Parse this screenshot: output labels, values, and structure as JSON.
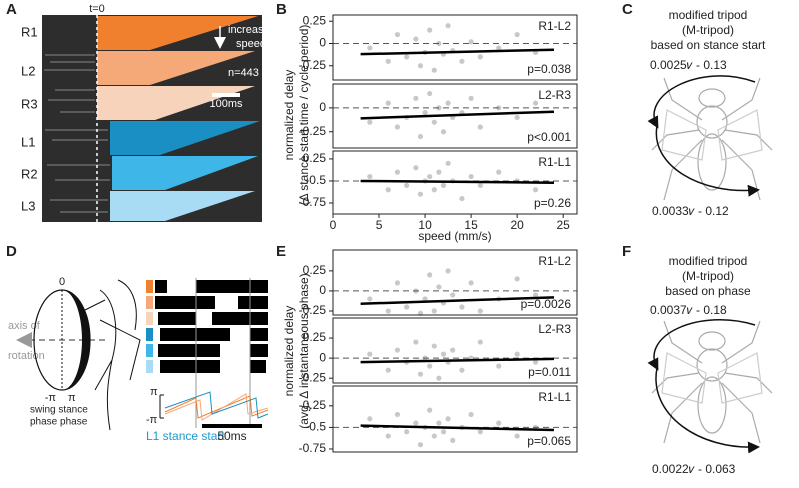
{
  "panel_labels": [
    "A",
    "B",
    "C",
    "D",
    "E",
    "F"
  ],
  "panel_a": {
    "legs": [
      "R1",
      "L2",
      "R3",
      "L1",
      "R2",
      "L3"
    ],
    "t0": "t=0",
    "arrow_label": [
      "increasing",
      "speed"
    ],
    "n": "n=443",
    "scale": "100ms"
  },
  "panel_b": {
    "ylabel": [
      "normalized delay",
      "(Δ stance start time / cycle period)"
    ],
    "xlabel": "speed (mm/s)"
  },
  "panel_c": {
    "lines": [
      "modified tripod",
      "(M-tripod)",
      "based on stance start"
    ],
    "formula_top": "0.0025𝜈 - 0.13",
    "formula_bottom": "0.0033𝜈 - 0.12"
  },
  "panel_d": {
    "zero": "0",
    "axis": [
      "axis of",
      "rotation"
    ],
    "neg_pi": "-π",
    "pi": "π",
    "phase": [
      "swing stance",
      "phase phase"
    ],
    "trace_pi": "π",
    "trace_neg_pi": "-π",
    "caption": "L1 stance start",
    "scale": "50ms"
  },
  "panel_e": {
    "ylabel": [
      "normalized delay",
      "(avg. Δ instantaneous phase)"
    ]
  },
  "panel_f": {
    "lines": [
      "modified tripod",
      "(M-tripod)",
      "based on phase"
    ],
    "formula_top": "0.0037𝜈 - 0.18",
    "formula_bottom": "0.0022𝜈 - 0.063"
  },
  "chart_data": [
    {
      "type": "scatter",
      "label": "R1-L2",
      "annotation": "p=0.038",
      "color": "#c8c8c8",
      "xlim": [
        0,
        26.5
      ],
      "ylim": [
        -0.41,
        0.32
      ],
      "yticks": [
        0.25,
        0,
        -0.25
      ],
      "ref_line": 0,
      "x": [
        4,
        6,
        7,
        8,
        9,
        9.5,
        10,
        10.5,
        11,
        11.5,
        12,
        12.5,
        13,
        14,
        15,
        16,
        18,
        20,
        22
      ],
      "y": [
        -0.05,
        -0.2,
        0.1,
        -0.15,
        0.05,
        -0.25,
        -0.1,
        0.15,
        -0.3,
        0,
        -0.12,
        0.2,
        -0.08,
        -0.2,
        0.02,
        -0.15,
        -0.05,
        0.1,
        -0.1
      ],
      "fit_x": [
        3,
        24
      ],
      "fit_y": [
        -0.12,
        -0.07
      ]
    },
    {
      "type": "scatter",
      "label": "L2-R3",
      "annotation": "p<0.001",
      "color": "#c8c8c8",
      "xlim": [
        0,
        26.5
      ],
      "ylim": [
        -0.42,
        0.25
      ],
      "yticks": [
        0,
        -0.25
      ],
      "ref_line": 0,
      "x": [
        4,
        6,
        7,
        8,
        9,
        9.5,
        10,
        10.5,
        11,
        11.5,
        12,
        12.5,
        13,
        14,
        15,
        16,
        18,
        20,
        22
      ],
      "y": [
        -0.15,
        0.05,
        -0.2,
        -0.1,
        0.1,
        -0.3,
        -0.05,
        0.15,
        -0.15,
        0,
        -0.25,
        0.05,
        -0.1,
        -0.05,
        0.1,
        -0.2,
        0,
        -0.1,
        0.05
      ],
      "fit_x": [
        3,
        24
      ],
      "fit_y": [
        -0.11,
        -0.04
      ]
    },
    {
      "type": "scatter",
      "label": "R1-L1",
      "annotation": "p=0.26",
      "color": "#c8c8c8",
      "xlim": [
        0,
        26.5
      ],
      "ylim": [
        -0.875,
        -0.16
      ],
      "yticks": [
        -0.25,
        -0.5,
        -0.75
      ],
      "ref_line": -0.5,
      "xticks": [
        0,
        5,
        10,
        15,
        20,
        25
      ],
      "x": [
        4,
        6,
        7,
        8,
        9,
        9.5,
        10,
        10.5,
        11,
        11.5,
        12,
        12.5,
        13,
        14,
        15,
        16,
        18,
        20,
        22
      ],
      "y": [
        -0.45,
        -0.6,
        -0.4,
        -0.55,
        -0.35,
        -0.65,
        -0.5,
        -0.45,
        -0.6,
        -0.4,
        -0.55,
        -0.3,
        -0.5,
        -0.7,
        -0.45,
        -0.55,
        -0.4,
        -0.5,
        -0.6
      ],
      "fit_x": [
        3,
        24
      ],
      "fit_y": [
        -0.5,
        -0.52
      ]
    },
    {
      "type": "scatter",
      "label": "R1-L2",
      "annotation": "p=0.0026",
      "color": "#c8c8c8",
      "xlim": [
        0,
        26.5
      ],
      "ylim": [
        -0.3,
        0.51
      ],
      "yticks": [
        0.25,
        0,
        -0.25
      ],
      "ref_line": 0,
      "x": [
        4,
        6,
        7,
        8,
        9,
        9.5,
        10,
        10.5,
        11,
        11.5,
        12,
        12.5,
        13,
        14,
        15,
        16,
        18,
        20,
        22
      ],
      "y": [
        -0.1,
        -0.25,
        0.1,
        -0.2,
        0,
        -0.28,
        -0.1,
        0.2,
        -0.25,
        0.05,
        -0.15,
        0.25,
        -0.05,
        -0.2,
        0.1,
        -0.25,
        -0.1,
        0.15,
        -0.05
      ],
      "fit_x": [
        3,
        24
      ],
      "fit_y": [
        -0.16,
        -0.08
      ]
    },
    {
      "type": "scatter",
      "label": "L2-R3",
      "annotation": "p=0.011",
      "color": "#c8c8c8",
      "xlim": [
        0,
        26.5
      ],
      "ylim": [
        -0.31,
        0.5
      ],
      "yticks": [
        0.25,
        0,
        -0.25
      ],
      "ref_line": 0,
      "x": [
        4,
        6,
        7,
        8,
        9,
        9.5,
        10,
        10.5,
        11,
        11.5,
        12,
        12.5,
        13,
        14,
        15,
        16,
        18,
        20,
        22
      ],
      "y": [
        0.05,
        -0.15,
        0.1,
        -0.05,
        0.2,
        -0.2,
        0,
        -0.1,
        0.15,
        -0.25,
        0.05,
        -0.05,
        0.1,
        -0.15,
        0,
        0.2,
        -0.1,
        0.05,
        -0.05
      ],
      "fit_x": [
        3,
        24
      ],
      "fit_y": [
        -0.05,
        -0.01
      ]
    },
    {
      "type": "scatter",
      "label": "R1-L1",
      "annotation": "p=0.065",
      "color": "#c8c8c8",
      "xlim": [
        0,
        26.5
      ],
      "ylim": [
        -0.785,
        -0.02
      ],
      "yticks": [
        -0.25,
        -0.5,
        -0.75
      ],
      "ref_line": -0.5,
      "x": [
        4,
        6,
        7,
        8,
        9,
        9.5,
        10,
        10.5,
        11,
        11.5,
        12,
        12.5,
        13,
        14,
        15,
        16,
        18,
        20,
        22
      ],
      "y": [
        -0.4,
        -0.6,
        -0.35,
        -0.55,
        -0.45,
        -0.7,
        -0.5,
        -0.3,
        -0.6,
        -0.45,
        -0.55,
        -0.4,
        -0.65,
        -0.5,
        -0.35,
        -0.55,
        -0.45,
        -0.6,
        -0.5
      ],
      "fit_x": [
        3,
        24
      ],
      "fit_y": [
        -0.48,
        -0.53
      ]
    }
  ]
}
